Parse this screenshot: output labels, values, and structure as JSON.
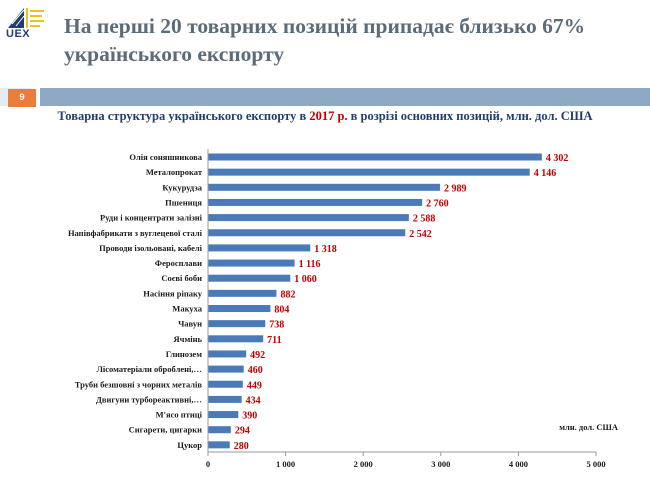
{
  "logo": {
    "text": "UEX"
  },
  "slide": {
    "title": "На перші 20 товарних позицій припадає близько 67% українського експорту",
    "page_number": "9",
    "subtitle_before": "Товарна структура українського експорту в ",
    "subtitle_year": "2017 р.",
    "subtitle_after": " в розрізі основних позицій, млн. дол. США"
  },
  "colors": {
    "bar": "#4a7ab8",
    "label": "#c00000",
    "title": "#5b6b78",
    "accent": "#e87d3e",
    "rule": "#8ea9c3"
  },
  "chart_data": {
    "type": "bar",
    "orientation": "horizontal",
    "unit_label": "млн. дол. США",
    "xlim": [
      0,
      5000
    ],
    "xticks": [
      0,
      1000,
      2000,
      3000,
      4000,
      5000
    ],
    "xtick_labels": [
      "0",
      "1 000",
      "2 000",
      "3 000",
      "4 000",
      "5 000"
    ],
    "grid": false,
    "categories": [
      "Олія соняшникова",
      "Металопрокат",
      "Кукурудза",
      "Пшениця",
      "Руди і концентрати залізні",
      "Напівфабрикати з вуглецевої сталі",
      "Проводи ізольовані, кабелі",
      "Феросплави",
      "Соєві боби",
      "Насіння ріпаку",
      "Макуха",
      "Чавун",
      "Ячмінь",
      "Глинозем",
      "Лісоматеріали оброблені,…",
      "Труби безшовні з чорних металів",
      "Двигуни турбореактивні,…",
      "М'ясо птиці",
      "Сигарети, цигарки",
      "Цукор"
    ],
    "values": [
      4302,
      4146,
      2989,
      2760,
      2588,
      2542,
      1318,
      1116,
      1060,
      882,
      804,
      738,
      711,
      492,
      460,
      449,
      434,
      390,
      294,
      280
    ],
    "value_labels": [
      "4 302",
      "4 146",
      "2 989",
      "2 760",
      "2 588",
      "2 542",
      "1 318",
      "1 116",
      "1 060",
      "882",
      "804",
      "738",
      "711",
      "492",
      "460",
      "449",
      "434",
      "390",
      "294",
      "280"
    ]
  }
}
